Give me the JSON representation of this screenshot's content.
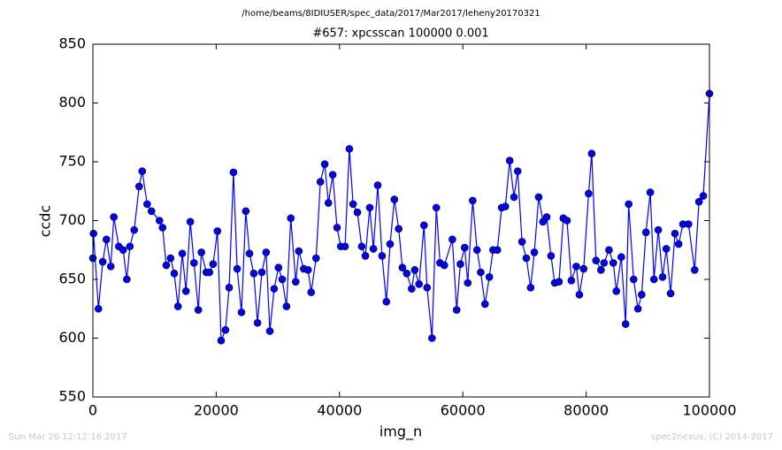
{
  "chart_data": {
    "type": "line",
    "title": "/home/beams/8IDIUSER/spec_data/2017/Mar2017/leheny20170321",
    "subtitle": "#657: xpcsscan 100000 0.001",
    "xlabel": "img_n",
    "ylabel": "ccdc",
    "footer_left": "Sun Mar 26 12:12:16 2017",
    "footer_right": "spec2nexus, (C) 2014-2017",
    "xlim": [
      0,
      100000
    ],
    "xticks": [
      0,
      20000,
      40000,
      60000,
      80000,
      100000
    ],
    "ylim": [
      550,
      850
    ],
    "yticks": [
      550,
      600,
      650,
      700,
      750,
      800,
      850
    ],
    "grid": false,
    "series": [
      {
        "color": "#0000ff",
        "x": [
          0,
          100,
          900,
          1600,
          2200,
          2900,
          3400,
          4200,
          4900,
          5500,
          6000,
          6700,
          7500,
          8000,
          8800,
          9500,
          10800,
          11300,
          11900,
          12600,
          13200,
          13800,
          14500,
          15100,
          15800,
          16400,
          17100,
          17600,
          18400,
          18900,
          19500,
          20200,
          20800,
          21500,
          22100,
          22800,
          23400,
          24100,
          24800,
          25400,
          26100,
          26700,
          27400,
          28100,
          28700,
          29400,
          30100,
          30700,
          31400,
          32100,
          32900,
          33400,
          34200,
          34900,
          35400,
          36200,
          36900,
          37600,
          38200,
          38900,
          39600,
          40200,
          40900,
          41600,
          42200,
          42900,
          43600,
          44200,
          44900,
          45500,
          46200,
          46900,
          47600,
          48200,
          48900,
          49600,
          50200,
          50900,
          51700,
          52200,
          52900,
          53700,
          54200,
          55000,
          55700,
          56300,
          57000,
          58300,
          59000,
          59600,
          60300,
          60800,
          61600,
          62300,
          62900,
          63600,
          64300,
          64900,
          65600,
          66300,
          66900,
          67600,
          68300,
          68900,
          69600,
          70300,
          71000,
          71600,
          72300,
          73000,
          73600,
          74300,
          74900,
          75600,
          76300,
          76900,
          77600,
          78400,
          78900,
          79600,
          80400,
          80900,
          81600,
          82400,
          82900,
          83700,
          84400,
          84900,
          85700,
          86400,
          86900,
          87700,
          88400,
          89000,
          89700,
          90400,
          91000,
          91700,
          92400,
          93000,
          93700,
          94400,
          95000,
          95700,
          96600,
          97600,
          98300,
          99000,
          100000
        ],
        "values": [
          668,
          689,
          625,
          665,
          684,
          661,
          703,
          678,
          675,
          650,
          678,
          692,
          729,
          742,
          714,
          708,
          700,
          694,
          662,
          668,
          655,
          627,
          672,
          640,
          699,
          664,
          624,
          673,
          656,
          656,
          663,
          691,
          598,
          607,
          643,
          741,
          659,
          622,
          708,
          672,
          655,
          613,
          656,
          673,
          606,
          642,
          660,
          650,
          627,
          702,
          648,
          674,
          659,
          658,
          639,
          668,
          733,
          748,
          715,
          739,
          694,
          678,
          678,
          761,
          714,
          707,
          678,
          670,
          711,
          676,
          730,
          670,
          631,
          680,
          718,
          693,
          660,
          655,
          642,
          658,
          646,
          696,
          643,
          600,
          711,
          664,
          662,
          684,
          624,
          663,
          677,
          647,
          717,
          675,
          656,
          629,
          652,
          675,
          675,
          711,
          712,
          751,
          720,
          742,
          682,
          668,
          643,
          673,
          720,
          699,
          703,
          670,
          647,
          648,
          702,
          700,
          649,
          661,
          637,
          659,
          723,
          757,
          666,
          658,
          664,
          675,
          664,
          640,
          669,
          612,
          714,
          650,
          625,
          637,
          690,
          724,
          650,
          692,
          652,
          676,
          638,
          689,
          680,
          697,
          697,
          658,
          716,
          721,
          808
        ]
      }
    ]
  }
}
